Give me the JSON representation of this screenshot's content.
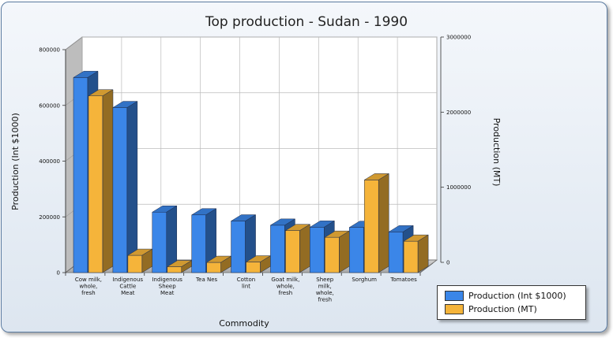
{
  "chart_data": {
    "type": "bar",
    "title": "Top production - Sudan - 1990",
    "xlabel": "Commodity",
    "ylabel": "Production (Int $1000)",
    "y2label": "Production (MT)",
    "categories": [
      [
        "Cow milk,",
        "whole,",
        "fresh"
      ],
      [
        "Indigenous",
        "Cattle",
        "Meat"
      ],
      [
        "Indigenous",
        "Sheep",
        "Meat"
      ],
      [
        "Tea Nes"
      ],
      [
        "Cotton",
        "lint"
      ],
      [
        "Goat milk,",
        "whole,",
        "fresh"
      ],
      [
        "Sheep",
        "milk,",
        "whole,",
        "fresh"
      ],
      [
        "Sorghum"
      ],
      [
        "Tomatoes"
      ]
    ],
    "series": [
      {
        "name": "Production (Int $1000)",
        "axis": "left",
        "color": "#3b86e8",
        "values": [
          700000,
          592000,
          217000,
          207000,
          185000,
          170000,
          163000,
          162000,
          146000
        ]
      },
      {
        "name": "Production (MT)",
        "axis": "right",
        "color": "#f5b43a",
        "values": [
          2250000,
          220000,
          75000,
          130000,
          135000,
          535000,
          450000,
          1180000,
          400000
        ]
      }
    ],
    "y_ticks": [
      "0",
      "200000",
      "400000",
      "600000",
      "800000"
    ],
    "y2_ticks": [
      "0",
      "1000000",
      "2000000",
      "3000000"
    ],
    "ylim": [
      0,
      800000
    ],
    "y2lim": [
      0,
      3000000
    ],
    "grid": true,
    "legend_position": "bottom-right"
  }
}
